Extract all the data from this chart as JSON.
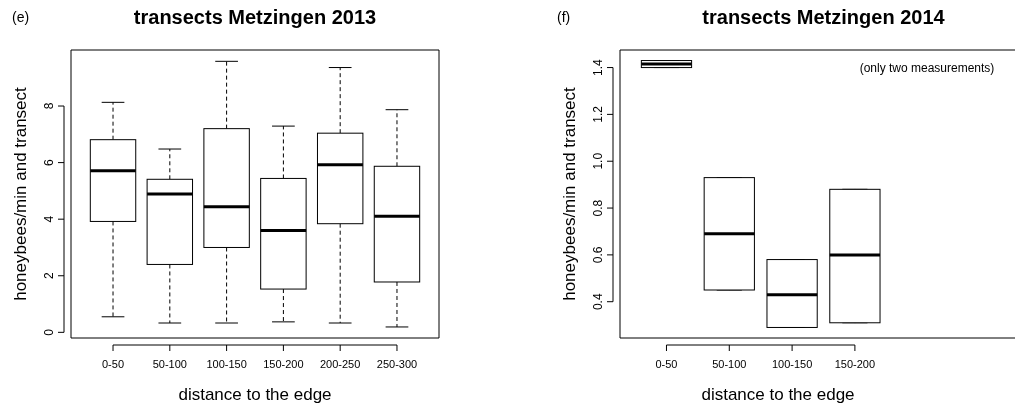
{
  "chart_data": [
    {
      "type": "box",
      "title": "transects Metzingen 2013",
      "xlabel": "distance to the edge",
      "ylabel": "honeybees/min and transect",
      "annotations": [
        "(e)"
      ],
      "categories": [
        "0-50",
        "50-100",
        "100-150",
        "150-200",
        "200-250",
        "250-300"
      ],
      "ylim": [
        -0.2,
        9.98
      ],
      "yticks": [
        0,
        2,
        4,
        6,
        8
      ],
      "boxes": [
        {
          "low": 0.55,
          "q1": 3.92,
          "median": 5.71,
          "q3": 6.81,
          "high": 8.13
        },
        {
          "low": 0.33,
          "q1": 2.4,
          "median": 4.89,
          "q3": 5.41,
          "high": 6.48
        },
        {
          "low": 0.33,
          "q1": 3.0,
          "median": 4.44,
          "q3": 7.2,
          "high": 9.58
        },
        {
          "low": 0.37,
          "q1": 1.53,
          "median": 3.6,
          "q3": 5.44,
          "high": 7.29
        },
        {
          "low": 0.33,
          "q1": 3.84,
          "median": 5.92,
          "q3": 7.04,
          "high": 9.36
        },
        {
          "low": 0.19,
          "q1": 1.78,
          "median": 4.1,
          "q3": 5.87,
          "high": 7.87
        }
      ]
    },
    {
      "type": "box",
      "title": "transects Metzingen 2014",
      "xlabel": "distance to the edge",
      "ylabel": "honeybees/min and transect",
      "annotations": [
        "(f)",
        "(only two measurements)"
      ],
      "categories": [
        "0-50",
        "50-100",
        "100-150",
        "150-200"
      ],
      "ylim": [
        0.245,
        1.475
      ],
      "yticks": [
        0.4,
        0.6,
        0.8,
        {
          "value": 1,
          "label": "1.0"
        },
        1.2,
        1.4
      ],
      "boxes": [
        {
          "low": 1.4,
          "q1": 1.4,
          "median": 1.415,
          "q3": 1.43,
          "high": 1.43
        },
        {
          "low": 0.45,
          "q1": 0.45,
          "median": 0.69,
          "q3": 0.93,
          "high": 0.93
        },
        {
          "low": 0.29,
          "q1": 0.29,
          "median": 0.43,
          "q3": 0.58,
          "high": 0.58
        },
        {
          "low": 0.31,
          "q1": 0.31,
          "median": 0.6,
          "q3": 0.88,
          "high": 0.88
        }
      ]
    }
  ]
}
